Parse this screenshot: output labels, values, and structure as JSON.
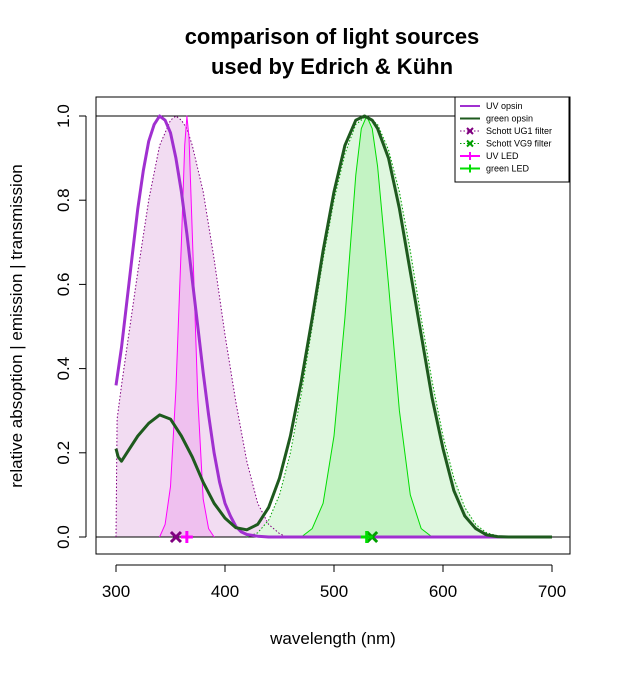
{
  "chart_data": {
    "type": "line",
    "title": [
      "comparison of light sources",
      "used by Edrich & Kühn"
    ],
    "xlabel": "wavelength (nm)",
    "ylabel": "relative absoption | emission | transmission",
    "xlim": [
      300,
      700
    ],
    "ylim": [
      0,
      1
    ],
    "x_ticks": [
      "300",
      "400",
      "500",
      "600",
      "700"
    ],
    "y_ticks": [
      "0.0",
      "0.2",
      "0.4",
      "0.6",
      "0.8",
      "1.0"
    ],
    "legend_position": "top-right",
    "series": [
      {
        "name": "UV opsin",
        "style": "solid",
        "color": "#A030D0",
        "x": [
          300,
          305,
          310,
          315,
          320,
          325,
          330,
          335,
          340,
          345,
          350,
          355,
          360,
          365,
          370,
          375,
          380,
          385,
          390,
          395,
          400,
          405,
          410,
          415,
          420,
          430,
          440,
          450,
          500,
          600,
          700
        ],
        "y": [
          0.36,
          0.45,
          0.56,
          0.67,
          0.78,
          0.87,
          0.94,
          0.98,
          1.0,
          0.99,
          0.96,
          0.9,
          0.82,
          0.72,
          0.61,
          0.5,
          0.39,
          0.29,
          0.2,
          0.13,
          0.08,
          0.05,
          0.025,
          0.012,
          0.006,
          0.002,
          0.0,
          0.0,
          0.0,
          0.0,
          0.0
        ]
      },
      {
        "name": "green opsin",
        "style": "solid",
        "color": "#1E5A1E",
        "x": [
          300,
          302,
          305,
          310,
          320,
          330,
          340,
          350,
          360,
          370,
          380,
          390,
          400,
          410,
          420,
          430,
          440,
          450,
          460,
          470,
          480,
          490,
          500,
          510,
          520,
          528,
          535,
          540,
          550,
          560,
          570,
          580,
          590,
          600,
          610,
          620,
          630,
          640,
          650,
          660,
          670,
          680,
          690,
          700
        ],
        "y": [
          0.21,
          0.19,
          0.18,
          0.2,
          0.24,
          0.27,
          0.29,
          0.28,
          0.24,
          0.19,
          0.13,
          0.08,
          0.045,
          0.022,
          0.017,
          0.03,
          0.07,
          0.14,
          0.24,
          0.37,
          0.52,
          0.68,
          0.82,
          0.93,
          0.99,
          1.0,
          0.99,
          0.97,
          0.9,
          0.78,
          0.63,
          0.48,
          0.33,
          0.21,
          0.11,
          0.05,
          0.02,
          0.005,
          0.001,
          0.0,
          0.0,
          0.0,
          0.0,
          0.0
        ]
      },
      {
        "name": "Schott UG1 filter",
        "style": "dotted",
        "color": "#800080",
        "marker_x": 355,
        "x": [
          300,
          301,
          305,
          310,
          320,
          330,
          340,
          350,
          355,
          360,
          365,
          370,
          380,
          390,
          400,
          410,
          420,
          430,
          440,
          450,
          455,
          460
        ],
        "y": [
          0.0,
          0.28,
          0.36,
          0.45,
          0.63,
          0.8,
          0.93,
          0.99,
          1.0,
          0.99,
          0.97,
          0.93,
          0.82,
          0.66,
          0.48,
          0.32,
          0.18,
          0.08,
          0.03,
          0.008,
          0.002,
          0.0
        ]
      },
      {
        "name": "Schott VG9 filter",
        "style": "dotted",
        "color": "#00A000",
        "marker_x": 535,
        "x": [
          420,
          430,
          440,
          450,
          460,
          470,
          480,
          490,
          500,
          510,
          520,
          530,
          540,
          550,
          560,
          570,
          580,
          590,
          600,
          610,
          620,
          630,
          640,
          650,
          660,
          670,
          680,
          690,
          700
        ],
        "y": [
          0.0,
          0.01,
          0.04,
          0.1,
          0.2,
          0.34,
          0.5,
          0.66,
          0.8,
          0.91,
          0.98,
          1.0,
          0.98,
          0.92,
          0.82,
          0.68,
          0.52,
          0.37,
          0.24,
          0.14,
          0.07,
          0.03,
          0.01,
          0.003,
          0.001,
          0.0,
          0.0,
          0.0,
          0.0
        ]
      },
      {
        "name": "UV LED",
        "style": "solid",
        "color": "#FF00FF",
        "marker_x": 365,
        "x": [
          340,
          345,
          350,
          355,
          360,
          363,
          365,
          367,
          370,
          375,
          380,
          385,
          390
        ],
        "y": [
          0.0,
          0.03,
          0.12,
          0.35,
          0.7,
          0.93,
          1.0,
          0.95,
          0.72,
          0.33,
          0.09,
          0.02,
          0.0
        ]
      },
      {
        "name": "green LED",
        "style": "solid",
        "color": "#00DD00",
        "marker_x": 530,
        "x": [
          470,
          480,
          490,
          500,
          510,
          520,
          525,
          530,
          535,
          540,
          550,
          560,
          570,
          580,
          590
        ],
        "y": [
          0.0,
          0.02,
          0.08,
          0.24,
          0.52,
          0.86,
          0.97,
          1.0,
          0.97,
          0.88,
          0.6,
          0.3,
          0.1,
          0.02,
          0.0
        ]
      }
    ],
    "fills": [
      {
        "series": "Schott UG1 filter",
        "color": "#F2DCF2"
      },
      {
        "series": "Schott VG9 filter",
        "color": "#DFF7DF"
      },
      {
        "series": "UV LED",
        "color": "#EFC0EF"
      },
      {
        "series": "green LED",
        "color": "#C3F3C3"
      }
    ],
    "reference_lines": [
      0,
      1
    ]
  }
}
